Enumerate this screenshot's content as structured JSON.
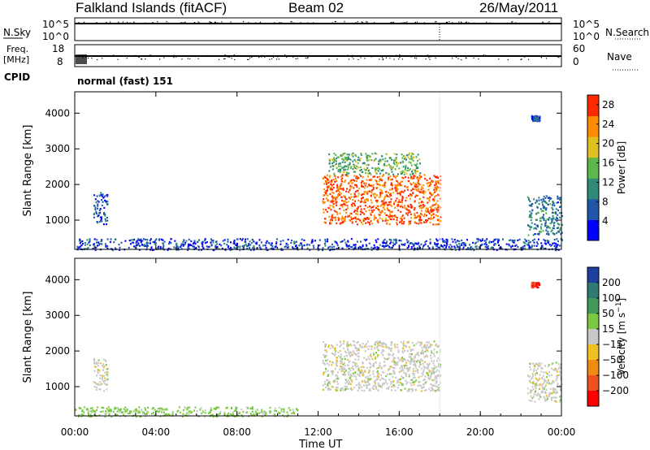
{
  "header": {
    "title": "Falkland Islands (fitACF)",
    "beam": "Beam 02",
    "date": "26/May/2011"
  },
  "status_panels": {
    "nsky_label": "N.Sky",
    "nsearch_label": "N.Search",
    "nsky_ticks": [
      "10^5",
      "10^0"
    ],
    "nsearch_ticks": [
      "10^5",
      "10^0"
    ],
    "freq_label": "Freq.",
    "freq_unit": "[MHz]",
    "freq_ticks": [
      "18",
      "8"
    ],
    "nave_label": "Nave",
    "nave_ticks": [
      "60",
      "0"
    ],
    "cpid_label": "CPID",
    "cpid_value": "normal (fast) 151"
  },
  "chart_data": [
    {
      "type": "heatmap",
      "panel": "power",
      "ylabel": "Slant Range [km]",
      "xlabel": "",
      "x_ticks": [
        "00:00",
        "04:00",
        "08:00",
        "12:00",
        "16:00",
        "20:00",
        "00:00"
      ],
      "xlim_hours": [
        0,
        24
      ],
      "y_ticks": [
        1000,
        2000,
        3000,
        4000
      ],
      "ylim": [
        180,
        4600
      ],
      "colorbar": {
        "label": "Power [dB]",
        "ticks": [
          4,
          8,
          12,
          16,
          20,
          24,
          28
        ],
        "range": [
          0,
          30
        ],
        "colors": [
          "#0000ff",
          "#1f56a8",
          "#2f8a78",
          "#5cb84a",
          "#e0c020",
          "#ff8c00",
          "#ff2a00"
        ]
      },
      "regions": [
        {
          "t": [
            0.9,
            1.6
          ],
          "r": [
            900,
            1800
          ],
          "value": 6
        },
        {
          "t": [
            12.2,
            18.0
          ],
          "r": [
            900,
            2300
          ],
          "value": 26
        },
        {
          "t": [
            12.5,
            17.0
          ],
          "r": [
            2300,
            2900
          ],
          "value": 14
        },
        {
          "t": [
            22.3,
            24.0
          ],
          "r": [
            600,
            1700
          ],
          "value": 9
        },
        {
          "t": [
            22.5,
            22.9
          ],
          "r": [
            3800,
            3950
          ],
          "value": 6
        },
        {
          "t": [
            0.0,
            24.0
          ],
          "r": [
            180,
            500
          ],
          "value": 5
        }
      ]
    },
    {
      "type": "heatmap",
      "panel": "velocity",
      "ylabel": "Slant Range [km]",
      "xlabel": "Time UT",
      "x_ticks": [
        "00:00",
        "04:00",
        "08:00",
        "12:00",
        "16:00",
        "20:00",
        "00:00"
      ],
      "xlim_hours": [
        0,
        24
      ],
      "y_ticks": [
        1000,
        2000,
        3000,
        4000
      ],
      "ylim": [
        180,
        4600
      ],
      "colorbar": {
        "label": "Velocity [m s^-1]",
        "ticks": [
          200,
          100,
          50,
          15,
          -15,
          -50,
          -100,
          -200
        ],
        "colors": [
          "#1f3fa0",
          "#2f7a72",
          "#3f9a5a",
          "#7ac840",
          "#c8c8c8",
          "#f0c020",
          "#f08a10",
          "#f05020",
          "#ff0000"
        ]
      },
      "regions": [
        {
          "t": [
            0.9,
            1.6
          ],
          "r": [
            900,
            1800
          ],
          "value": 0
        },
        {
          "t": [
            12.2,
            18.0
          ],
          "r": [
            900,
            2300
          ],
          "value": 0
        },
        {
          "t": [
            22.3,
            24.0
          ],
          "r": [
            600,
            1700
          ],
          "value": 0
        },
        {
          "t": [
            22.5,
            22.9
          ],
          "r": [
            3800,
            3950
          ],
          "value": -200
        },
        {
          "t": [
            0.0,
            11.0
          ],
          "r": [
            180,
            450
          ],
          "value": 30
        }
      ]
    }
  ]
}
